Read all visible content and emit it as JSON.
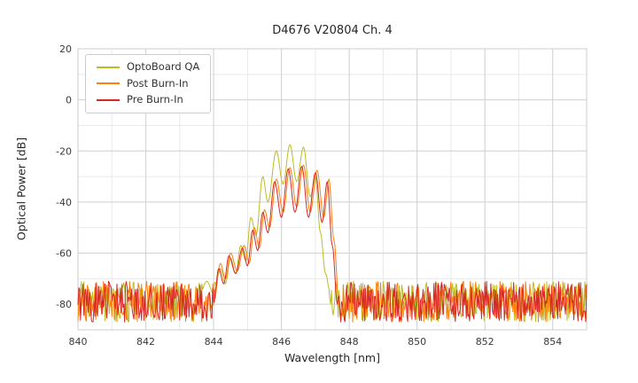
{
  "chart_data": {
    "type": "line",
    "title": "D4676 V20804 Ch. 4",
    "xlabel": "Wavelength [nm]",
    "ylabel": "Optical Power [dB]",
    "xlim": [
      840,
      855
    ],
    "ylim": [
      -90,
      20
    ],
    "xticks": [
      840,
      842,
      844,
      846,
      848,
      850,
      852,
      854
    ],
    "yticks": [
      20,
      0,
      -20,
      -40,
      -60,
      -80
    ],
    "grid": true,
    "legend_position": "upper-left",
    "noise_floor": {
      "min": -87,
      "max": -71,
      "seed": 42,
      "sample_step": 0.025
    },
    "series": [
      {
        "name": "OptoBoard QA",
        "color": "#bcbd22",
        "envelope_points": [
          [
            843.5,
            -80
          ],
          [
            843.8,
            -71
          ],
          [
            844.0,
            -76
          ],
          [
            844.2,
            -66
          ],
          [
            844.35,
            -72
          ],
          [
            844.5,
            -62
          ],
          [
            844.65,
            -68
          ],
          [
            844.8,
            -57
          ],
          [
            844.95,
            -63
          ],
          [
            845.1,
            -46
          ],
          [
            845.25,
            -53
          ],
          [
            845.45,
            -30
          ],
          [
            845.6,
            -40
          ],
          [
            845.85,
            -20
          ],
          [
            846.05,
            -33
          ],
          [
            846.25,
            -17.5
          ],
          [
            846.45,
            -32
          ],
          [
            846.65,
            -18.5
          ],
          [
            846.85,
            -38
          ],
          [
            847.0,
            -30
          ],
          [
            847.15,
            -52
          ],
          [
            847.3,
            -68
          ],
          [
            847.5,
            -82
          ]
        ]
      },
      {
        "name": "Post Burn-In",
        "color": "#ff7f0e",
        "envelope_points": [
          [
            844.0,
            -80
          ],
          [
            844.2,
            -64
          ],
          [
            844.35,
            -70
          ],
          [
            844.5,
            -60
          ],
          [
            844.7,
            -67
          ],
          [
            844.9,
            -57
          ],
          [
            845.05,
            -64
          ],
          [
            845.2,
            -50
          ],
          [
            845.35,
            -58
          ],
          [
            845.5,
            -43
          ],
          [
            845.65,
            -50
          ],
          [
            845.85,
            -31
          ],
          [
            846.05,
            -44
          ],
          [
            846.25,
            -26.5
          ],
          [
            846.45,
            -42
          ],
          [
            846.65,
            -25.5
          ],
          [
            846.85,
            -44
          ],
          [
            847.05,
            -27.5
          ],
          [
            847.25,
            -46
          ],
          [
            847.4,
            -31
          ],
          [
            847.55,
            -55
          ],
          [
            847.7,
            -80
          ]
        ]
      },
      {
        "name": "Pre Burn-In",
        "color": "#d62728",
        "envelope_points": [
          [
            844.0,
            -80
          ],
          [
            844.15,
            -66
          ],
          [
            844.3,
            -72
          ],
          [
            844.45,
            -61
          ],
          [
            844.65,
            -68
          ],
          [
            844.85,
            -58
          ],
          [
            845.0,
            -65
          ],
          [
            845.15,
            -51
          ],
          [
            845.3,
            -59
          ],
          [
            845.45,
            -44
          ],
          [
            845.6,
            -52
          ],
          [
            845.8,
            -32
          ],
          [
            846.0,
            -46
          ],
          [
            846.2,
            -27
          ],
          [
            846.4,
            -44
          ],
          [
            846.6,
            -26
          ],
          [
            846.8,
            -46
          ],
          [
            847.0,
            -28.5
          ],
          [
            847.2,
            -48
          ],
          [
            847.35,
            -32
          ],
          [
            847.5,
            -57
          ],
          [
            847.65,
            -80
          ]
        ]
      }
    ]
  }
}
